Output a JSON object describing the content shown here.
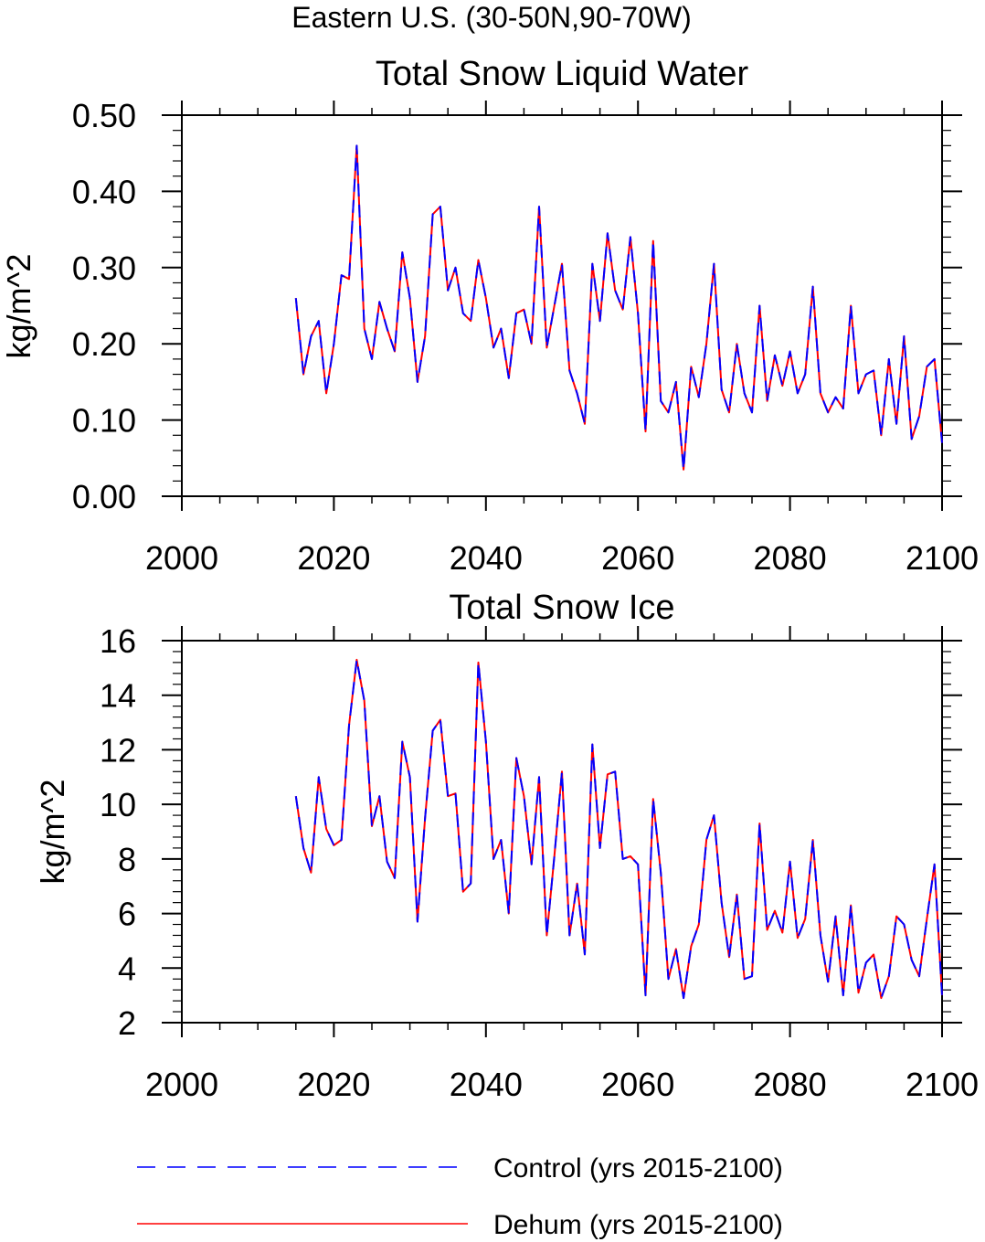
{
  "figure": {
    "title": "Eastern U.S. (30-50N,90-70W)"
  },
  "legend": {
    "items": [
      {
        "label": "Control (yrs 2015-2100)",
        "color": "#0000ff",
        "style": "dashed"
      },
      {
        "label": "Dehum (yrs 2015-2100)",
        "color": "#ff0000",
        "style": "solid"
      }
    ]
  },
  "chart_data": [
    {
      "type": "line",
      "title": "Total Snow Liquid Water",
      "xlabel": "",
      "ylabel": "kg/m^2",
      "xlim": [
        2000,
        2100
      ],
      "ylim": [
        0.0,
        0.5
      ],
      "xticks": [
        2000,
        2020,
        2040,
        2060,
        2080,
        2100
      ],
      "xtick_labels": [
        "2000",
        "2020",
        "2040",
        "2060",
        "2080",
        "2100"
      ],
      "yticks": [
        0.0,
        0.1,
        0.2,
        0.3,
        0.4,
        0.5
      ],
      "ytick_labels": [
        "0.00",
        "0.10",
        "0.20",
        "0.30",
        "0.40",
        "0.50"
      ],
      "x_start": 2015,
      "series": [
        {
          "name": "Control (yrs 2015-2100)",
          "color": "#0000ff",
          "dashed": true,
          "values": [
            0.26,
            0.16,
            0.21,
            0.23,
            0.135,
            0.2,
            0.29,
            0.285,
            0.46,
            0.22,
            0.18,
            0.255,
            0.22,
            0.19,
            0.32,
            0.26,
            0.15,
            0.21,
            0.37,
            0.38,
            0.27,
            0.3,
            0.24,
            0.23,
            0.31,
            0.26,
            0.195,
            0.22,
            0.155,
            0.24,
            0.245,
            0.2,
            0.38,
            0.195,
            0.25,
            0.305,
            0.165,
            0.135,
            0.095,
            0.305,
            0.23,
            0.345,
            0.27,
            0.245,
            0.34,
            0.24,
            0.085,
            0.335,
            0.125,
            0.11,
            0.15,
            0.035,
            0.17,
            0.13,
            0.2,
            0.305,
            0.14,
            0.11,
            0.2,
            0.135,
            0.11,
            0.25,
            0.125,
            0.185,
            0.145,
            0.19,
            0.135,
            0.16,
            0.275,
            0.135,
            0.11,
            0.13,
            0.115,
            0.25,
            0.135,
            0.16,
            0.165,
            0.08,
            0.18,
            0.095,
            0.21,
            0.075,
            0.105,
            0.17,
            0.18,
            0.07
          ]
        },
        {
          "name": "Dehum (yrs 2015-2100)",
          "color": "#ff0000",
          "dashed": false,
          "values": [
            0.26,
            0.16,
            0.21,
            0.23,
            0.135,
            0.2,
            0.29,
            0.285,
            0.46,
            0.22,
            0.18,
            0.255,
            0.22,
            0.19,
            0.32,
            0.26,
            0.15,
            0.21,
            0.37,
            0.38,
            0.27,
            0.3,
            0.24,
            0.23,
            0.31,
            0.26,
            0.195,
            0.22,
            0.155,
            0.24,
            0.245,
            0.2,
            0.38,
            0.195,
            0.25,
            0.305,
            0.165,
            0.135,
            0.095,
            0.305,
            0.23,
            0.345,
            0.27,
            0.245,
            0.34,
            0.24,
            0.085,
            0.335,
            0.125,
            0.11,
            0.15,
            0.035,
            0.17,
            0.13,
            0.2,
            0.305,
            0.14,
            0.11,
            0.2,
            0.135,
            0.11,
            0.25,
            0.125,
            0.185,
            0.145,
            0.19,
            0.135,
            0.16,
            0.275,
            0.135,
            0.11,
            0.13,
            0.115,
            0.25,
            0.135,
            0.16,
            0.165,
            0.08,
            0.18,
            0.095,
            0.21,
            0.075,
            0.105,
            0.17,
            0.18,
            0.07
          ]
        }
      ]
    },
    {
      "type": "line",
      "title": "Total Snow Ice",
      "xlabel": "",
      "ylabel": "kg/m^2",
      "xlim": [
        2000,
        2100
      ],
      "ylim": [
        2,
        16
      ],
      "xticks": [
        2000,
        2020,
        2040,
        2060,
        2080,
        2100
      ],
      "xtick_labels": [
        "2000",
        "2020",
        "2040",
        "2060",
        "2080",
        "2100"
      ],
      "yticks": [
        2,
        4,
        6,
        8,
        10,
        12,
        14,
        16
      ],
      "ytick_labels": [
        "2",
        "4",
        "6",
        "8",
        "10",
        "12",
        "14",
        "16"
      ],
      "x_start": 2015,
      "series": [
        {
          "name": "Control (yrs 2015-2100)",
          "color": "#0000ff",
          "dashed": true,
          "values": [
            10.3,
            8.4,
            7.5,
            11.0,
            9.1,
            8.5,
            8.7,
            12.9,
            15.3,
            13.8,
            9.2,
            10.3,
            7.9,
            7.3,
            12.3,
            11.0,
            5.7,
            9.5,
            12.7,
            13.1,
            10.3,
            10.4,
            6.8,
            7.1,
            15.2,
            12.3,
            8.0,
            8.7,
            6.0,
            11.7,
            10.3,
            7.8,
            11.0,
            5.2,
            8.1,
            11.2,
            5.2,
            7.1,
            4.5,
            12.2,
            8.4,
            11.1,
            11.2,
            8.0,
            8.1,
            7.8,
            3.0,
            10.2,
            7.5,
            3.6,
            4.7,
            2.9,
            4.8,
            5.6,
            8.7,
            9.6,
            6.4,
            4.4,
            6.7,
            3.6,
            3.7,
            9.3,
            5.4,
            6.1,
            5.3,
            7.9,
            5.1,
            5.8,
            8.7,
            5.2,
            3.5,
            5.9,
            3.0,
            6.3,
            3.1,
            4.2,
            4.5,
            2.9,
            3.7,
            5.9,
            5.6,
            4.3,
            3.7,
            5.8,
            7.8,
            3.0
          ]
        },
        {
          "name": "Dehum (yrs 2015-2100)",
          "color": "#ff0000",
          "dashed": false,
          "values": [
            10.3,
            8.4,
            7.5,
            11.0,
            9.1,
            8.5,
            8.7,
            12.9,
            15.3,
            13.8,
            9.2,
            10.3,
            7.9,
            7.3,
            12.3,
            11.0,
            5.7,
            9.5,
            12.7,
            13.1,
            10.3,
            10.4,
            6.8,
            7.1,
            15.2,
            12.3,
            8.0,
            8.7,
            6.0,
            11.7,
            10.3,
            7.8,
            11.0,
            5.2,
            8.1,
            11.2,
            5.2,
            7.1,
            4.5,
            12.2,
            8.4,
            11.1,
            11.2,
            8.0,
            8.1,
            7.8,
            3.0,
            10.2,
            7.5,
            3.6,
            4.7,
            2.9,
            4.8,
            5.6,
            8.7,
            9.6,
            6.4,
            4.4,
            6.7,
            3.6,
            3.7,
            9.3,
            5.4,
            6.1,
            5.3,
            7.9,
            5.1,
            5.8,
            8.7,
            5.2,
            3.5,
            5.9,
            3.0,
            6.3,
            3.1,
            4.2,
            4.5,
            2.9,
            3.7,
            5.9,
            5.6,
            4.3,
            3.7,
            5.8,
            7.8,
            3.0
          ]
        }
      ]
    }
  ]
}
